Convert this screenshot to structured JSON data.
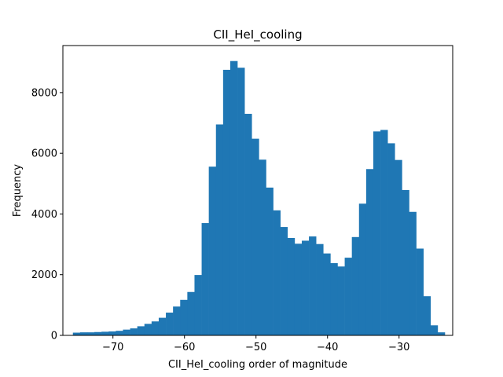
{
  "chart_data": {
    "type": "bar",
    "title": "CII_HeI_cooling",
    "xlabel": "CII_HeI_cooling order of magnitude",
    "ylabel": "Frequency",
    "xlim": [
      -77.0,
      -22.5
    ],
    "ylim": [
      0,
      9550
    ],
    "xticks": [
      -70,
      -60,
      -50,
      -40,
      -30
    ],
    "xtick_labels": [
      "−70",
      "−60",
      "−50",
      "−40",
      "−30"
    ],
    "yticks": [
      0,
      2000,
      4000,
      6000,
      8000
    ],
    "ytick_labels": [
      "0",
      "2000",
      "4000",
      "6000",
      "8000"
    ],
    "bin_start": -75.6,
    "bin_width": 1.0,
    "values": [
      90,
      100,
      100,
      110,
      120,
      130,
      150,
      190,
      230,
      300,
      380,
      460,
      580,
      750,
      950,
      1170,
      1430,
      1990,
      3700,
      5560,
      6950,
      8750,
      9040,
      8820,
      7300,
      6480,
      5790,
      4870,
      4120,
      3570,
      3210,
      3020,
      3120,
      3260,
      3010,
      2700,
      2380,
      2270,
      2560,
      3240,
      4340,
      5480,
      6720,
      6770,
      6330,
      5780,
      4790,
      4070,
      2860,
      1290,
      330,
      100
    ],
    "bar_color": "#1f77b4",
    "grid": false,
    "legend": "none"
  }
}
